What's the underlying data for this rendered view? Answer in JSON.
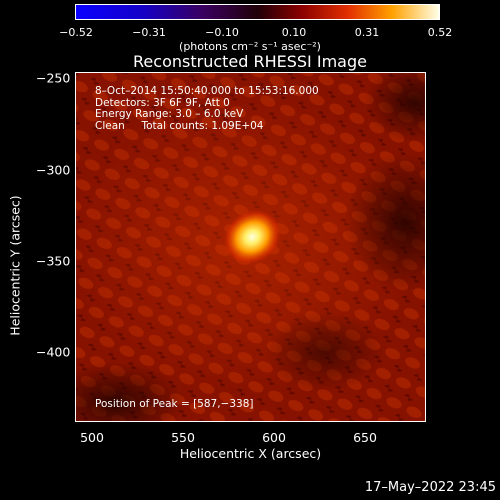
{
  "colorbar": {
    "ticks": [
      "−0.52",
      "−0.31",
      "−0.10",
      "0.10",
      "0.31",
      "0.52"
    ],
    "units": "(photons cm⁻² s⁻¹ asec⁻²)"
  },
  "title": "Reconstructed RHESSI Image",
  "annotation": {
    "line1": "8–Oct–2014 15:50:40.000 to 15:53:16.000",
    "line2": "Detectors: 3F 6F 9F, Att 0",
    "line3": "Energy Range: 3.0 – 6.0 keV",
    "line4": "Clean     Total counts: 1.09E+04"
  },
  "peak_text": "Position of Peak = [587,−338]",
  "axes": {
    "xlabel": "Heliocentric X (arcsec)",
    "ylabel": "Heliocentric Y (arcsec)",
    "xticks": [
      "500",
      "550",
      "600",
      "650"
    ],
    "yticks": [
      "−250",
      "−300",
      "−350",
      "−400"
    ],
    "xlim": [
      484,
      688
    ],
    "ylim": [
      -440,
      -247
    ]
  },
  "timestamp": "17–May–2022 23:45",
  "colors": {
    "foreground": "#ffffff",
    "background": "#000000"
  }
}
